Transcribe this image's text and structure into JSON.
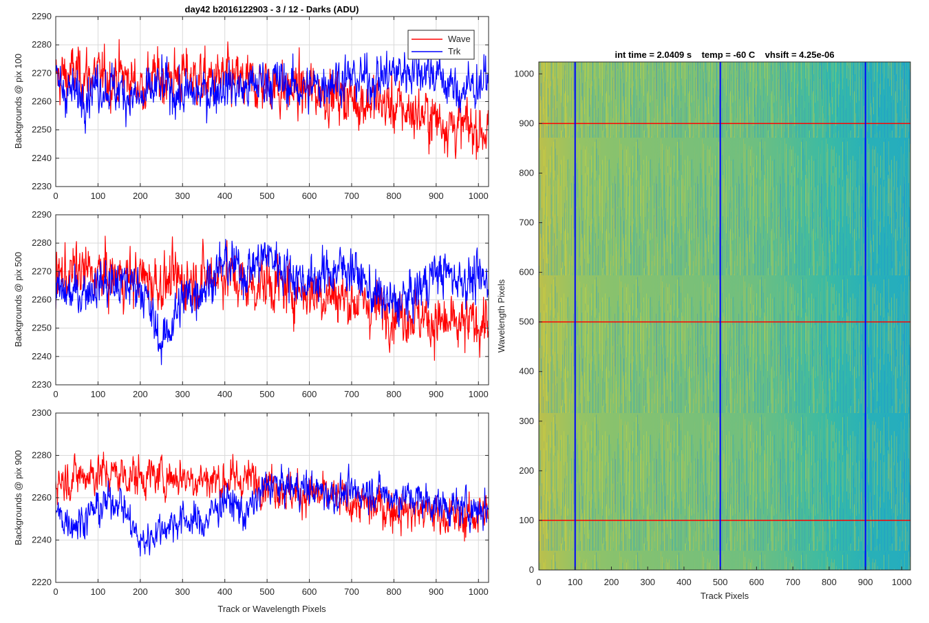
{
  "figure": {
    "colors": {
      "wave": "#ff0000",
      "trk": "#0000ff",
      "grid": "#d9d9d9",
      "axes": "#262626"
    }
  },
  "chart_data": [
    {
      "type": "line",
      "title": "day42 b2016122903 - 3 / 12 - Darks (ADU)",
      "xlabel": "",
      "ylabel": "Backgrounds @ pix 100",
      "xlim": [
        0,
        1024
      ],
      "ylim": [
        2230,
        2290
      ],
      "xticks": [
        0,
        100,
        200,
        300,
        400,
        500,
        600,
        700,
        800,
        900,
        1000
      ],
      "yticks": [
        2230,
        2240,
        2250,
        2260,
        2270,
        2280,
        2290
      ],
      "grid": true,
      "legend": {
        "position": "top-right",
        "entries": [
          "Wave",
          "Trk"
        ]
      },
      "series": [
        {
          "name": "Wave",
          "color": "#ff0000",
          "x": [
            0,
            50,
            100,
            150,
            200,
            250,
            300,
            350,
            400,
            450,
            500,
            550,
            600,
            650,
            700,
            750,
            800,
            850,
            900,
            950,
            1023
          ],
          "values": [
            2268,
            2270,
            2268,
            2269,
            2266,
            2268,
            2269,
            2267,
            2268,
            2266,
            2266,
            2264,
            2264,
            2263,
            2261,
            2260,
            2258,
            2256,
            2254,
            2251,
            2250
          ],
          "noise": 7
        },
        {
          "name": "Trk",
          "color": "#0000ff",
          "x": [
            0,
            50,
            100,
            150,
            200,
            250,
            300,
            350,
            400,
            450,
            500,
            550,
            600,
            650,
            700,
            750,
            800,
            850,
            900,
            950,
            1023
          ],
          "values": [
            2267,
            2262,
            2266,
            2264,
            2260,
            2266,
            2262,
            2263,
            2266,
            2264,
            2268,
            2266,
            2264,
            2268,
            2268,
            2268,
            2270,
            2272,
            2270,
            2263,
            2268
          ],
          "noise": 6
        }
      ]
    },
    {
      "type": "line",
      "title": "",
      "xlabel": "",
      "ylabel": "Backgrounds @ pix 500",
      "xlim": [
        0,
        1024
      ],
      "ylim": [
        2230,
        2290
      ],
      "xticks": [
        0,
        100,
        200,
        300,
        400,
        500,
        600,
        700,
        800,
        900,
        1000
      ],
      "yticks": [
        2230,
        2240,
        2250,
        2260,
        2270,
        2280,
        2290
      ],
      "grid": true,
      "series": [
        {
          "name": "Wave",
          "color": "#ff0000",
          "x": [
            0,
            50,
            100,
            150,
            200,
            250,
            300,
            350,
            400,
            450,
            500,
            550,
            600,
            650,
            700,
            750,
            800,
            850,
            900,
            950,
            1023
          ],
          "values": [
            2268,
            2270,
            2269,
            2268,
            2268,
            2266,
            2267,
            2268,
            2270,
            2265,
            2266,
            2264,
            2263,
            2262,
            2260,
            2258,
            2256,
            2255,
            2252,
            2250,
            2253
          ],
          "noise": 7
        },
        {
          "name": "Trk",
          "color": "#0000ff",
          "x": [
            0,
            50,
            100,
            150,
            200,
            250,
            300,
            350,
            400,
            450,
            500,
            550,
            600,
            650,
            700,
            750,
            800,
            850,
            900,
            950,
            1023
          ],
          "values": [
            2262,
            2262,
            2266,
            2265,
            2266,
            2244,
            2260,
            2265,
            2273,
            2270,
            2276,
            2270,
            2266,
            2270,
            2272,
            2262,
            2258,
            2262,
            2270,
            2268,
            2266
          ],
          "noise": 6
        }
      ]
    },
    {
      "type": "line",
      "title": "",
      "xlabel": "Track or Wavelength Pixels",
      "ylabel": "Backgrounds @ pix 900",
      "xlim": [
        0,
        1024
      ],
      "ylim": [
        2220,
        2300
      ],
      "xticks": [
        0,
        100,
        200,
        300,
        400,
        500,
        600,
        700,
        800,
        900,
        1000
      ],
      "yticks": [
        2220,
        2240,
        2260,
        2280,
        2300
      ],
      "grid": true,
      "series": [
        {
          "name": "Wave",
          "color": "#ff0000",
          "x": [
            0,
            50,
            100,
            150,
            200,
            250,
            300,
            350,
            400,
            450,
            500,
            550,
            600,
            650,
            700,
            750,
            800,
            850,
            900,
            950,
            1023
          ],
          "values": [
            2268,
            2270,
            2272,
            2271,
            2270,
            2270,
            2270,
            2269,
            2268,
            2269,
            2268,
            2263,
            2262,
            2260,
            2258,
            2256,
            2255,
            2254,
            2253,
            2250,
            2253
          ],
          "noise": 7
        },
        {
          "name": "Trk",
          "color": "#0000ff",
          "x": [
            0,
            50,
            100,
            150,
            200,
            250,
            300,
            350,
            400,
            450,
            500,
            550,
            600,
            650,
            700,
            750,
            800,
            850,
            900,
            950,
            1023
          ],
          "values": [
            2252,
            2248,
            2255,
            2260,
            2238,
            2246,
            2250,
            2248,
            2260,
            2252,
            2266,
            2265,
            2264,
            2262,
            2262,
            2264,
            2260,
            2260,
            2257,
            2255,
            2255
          ],
          "noise": 6
        }
      ]
    },
    {
      "type": "heatmap",
      "title": "int time = 2.0409 s    temp = -60 C    vhsift = 4.25e-06",
      "xlabel": "Track Pixels",
      "ylabel": "Wavelength Pixels",
      "xlim": [
        0,
        1024
      ],
      "ylim": [
        0,
        1024
      ],
      "xticks": [
        0,
        100,
        200,
        300,
        400,
        500,
        600,
        700,
        800,
        900,
        1000
      ],
      "yticks": [
        0,
        100,
        200,
        300,
        400,
        500,
        600,
        700,
        800,
        900,
        1000
      ],
      "colormap": "parula",
      "gradient_x": [
        0,
        100,
        200,
        400,
        600,
        800,
        900,
        1024
      ],
      "gradient_level": [
        0.78,
        0.7,
        0.68,
        0.66,
        0.64,
        0.56,
        0.5,
        0.47
      ],
      "overlays": {
        "vertical_lines": {
          "color": "#0000ff",
          "x": [
            100,
            500,
            900
          ]
        },
        "horizontal_lines": {
          "color": "#ff0000",
          "y": [
            100,
            500,
            900
          ]
        }
      }
    }
  ]
}
